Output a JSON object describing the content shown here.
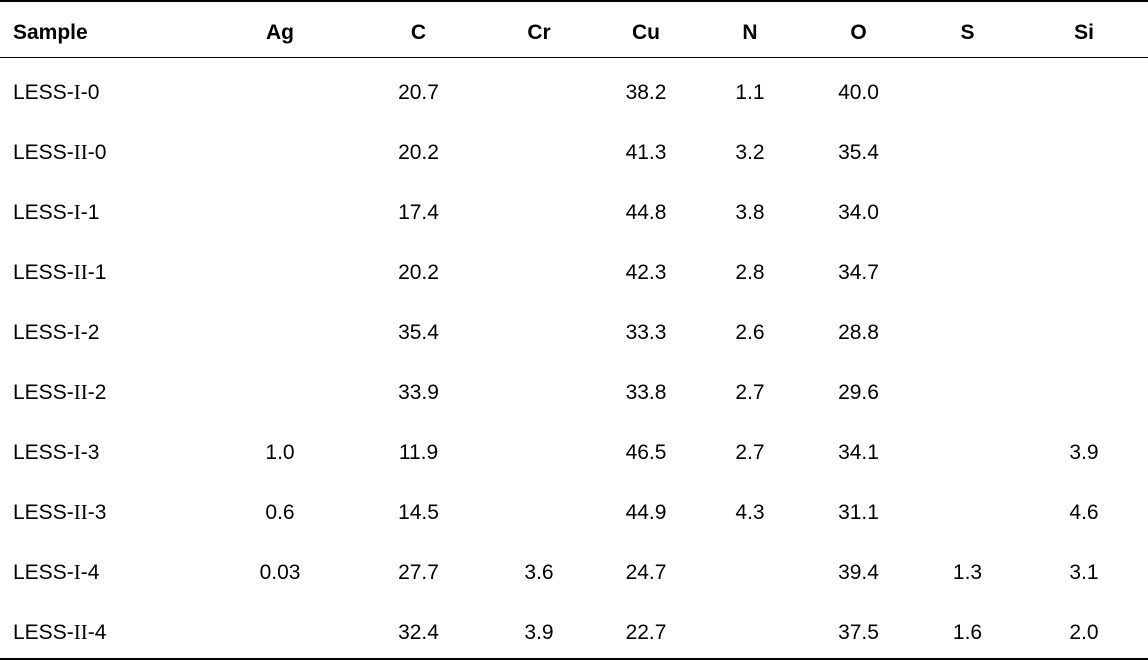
{
  "table": {
    "columns": [
      "Sample",
      "Ag",
      "C",
      "Cr",
      "Cu",
      "N",
      "O",
      "S",
      "Si"
    ],
    "rows": [
      {
        "sample": {
          "prefix": "LESS-",
          "numeral": "I",
          "suffix": "-0"
        },
        "values": [
          "",
          "20.7",
          "",
          "38.2",
          "1.1",
          "40.0",
          "",
          ""
        ]
      },
      {
        "sample": {
          "prefix": "LESS-",
          "numeral": "II",
          "suffix": "-0"
        },
        "values": [
          "",
          "20.2",
          "",
          "41.3",
          "3.2",
          "35.4",
          "",
          ""
        ]
      },
      {
        "sample": {
          "prefix": "LESS-",
          "numeral": "I",
          "suffix": "-1"
        },
        "values": [
          "",
          "17.4",
          "",
          "44.8",
          "3.8",
          "34.0",
          "",
          ""
        ]
      },
      {
        "sample": {
          "prefix": "LESS-",
          "numeral": "II",
          "suffix": "-1"
        },
        "values": [
          "",
          "20.2",
          "",
          "42.3",
          "2.8",
          "34.7",
          "",
          ""
        ]
      },
      {
        "sample": {
          "prefix": "LESS-",
          "numeral": "I",
          "suffix": "-2"
        },
        "values": [
          "",
          "35.4",
          "",
          "33.3",
          "2.6",
          "28.8",
          "",
          ""
        ]
      },
      {
        "sample": {
          "prefix": "LESS-",
          "numeral": "II",
          "suffix": "-2"
        },
        "values": [
          "",
          "33.9",
          "",
          "33.8",
          "2.7",
          "29.6",
          "",
          ""
        ]
      },
      {
        "sample": {
          "prefix": "LESS-",
          "numeral": "I",
          "suffix": "-3"
        },
        "values": [
          "1.0",
          "11.9",
          "",
          "46.5",
          "2.7",
          "34.1",
          "",
          "3.9"
        ]
      },
      {
        "sample": {
          "prefix": "LESS-",
          "numeral": "II",
          "suffix": "-3"
        },
        "values": [
          "0.6",
          "14.5",
          "",
          "44.9",
          "4.3",
          "31.1",
          "",
          "4.6"
        ]
      },
      {
        "sample": {
          "prefix": "LESS-",
          "numeral": "I",
          "suffix": "-4"
        },
        "values": [
          "0.03",
          "27.7",
          "3.6",
          "24.7",
          "",
          "39.4",
          "1.3",
          "3.1"
        ]
      },
      {
        "sample": {
          "prefix": "LESS-",
          "numeral": "II",
          "suffix": "-4"
        },
        "values": [
          "",
          "32.4",
          "3.9",
          "22.7",
          "",
          "37.5",
          "1.6",
          "2.0"
        ]
      }
    ],
    "text_color": "#000000",
    "background_color": "#ffffff"
  }
}
